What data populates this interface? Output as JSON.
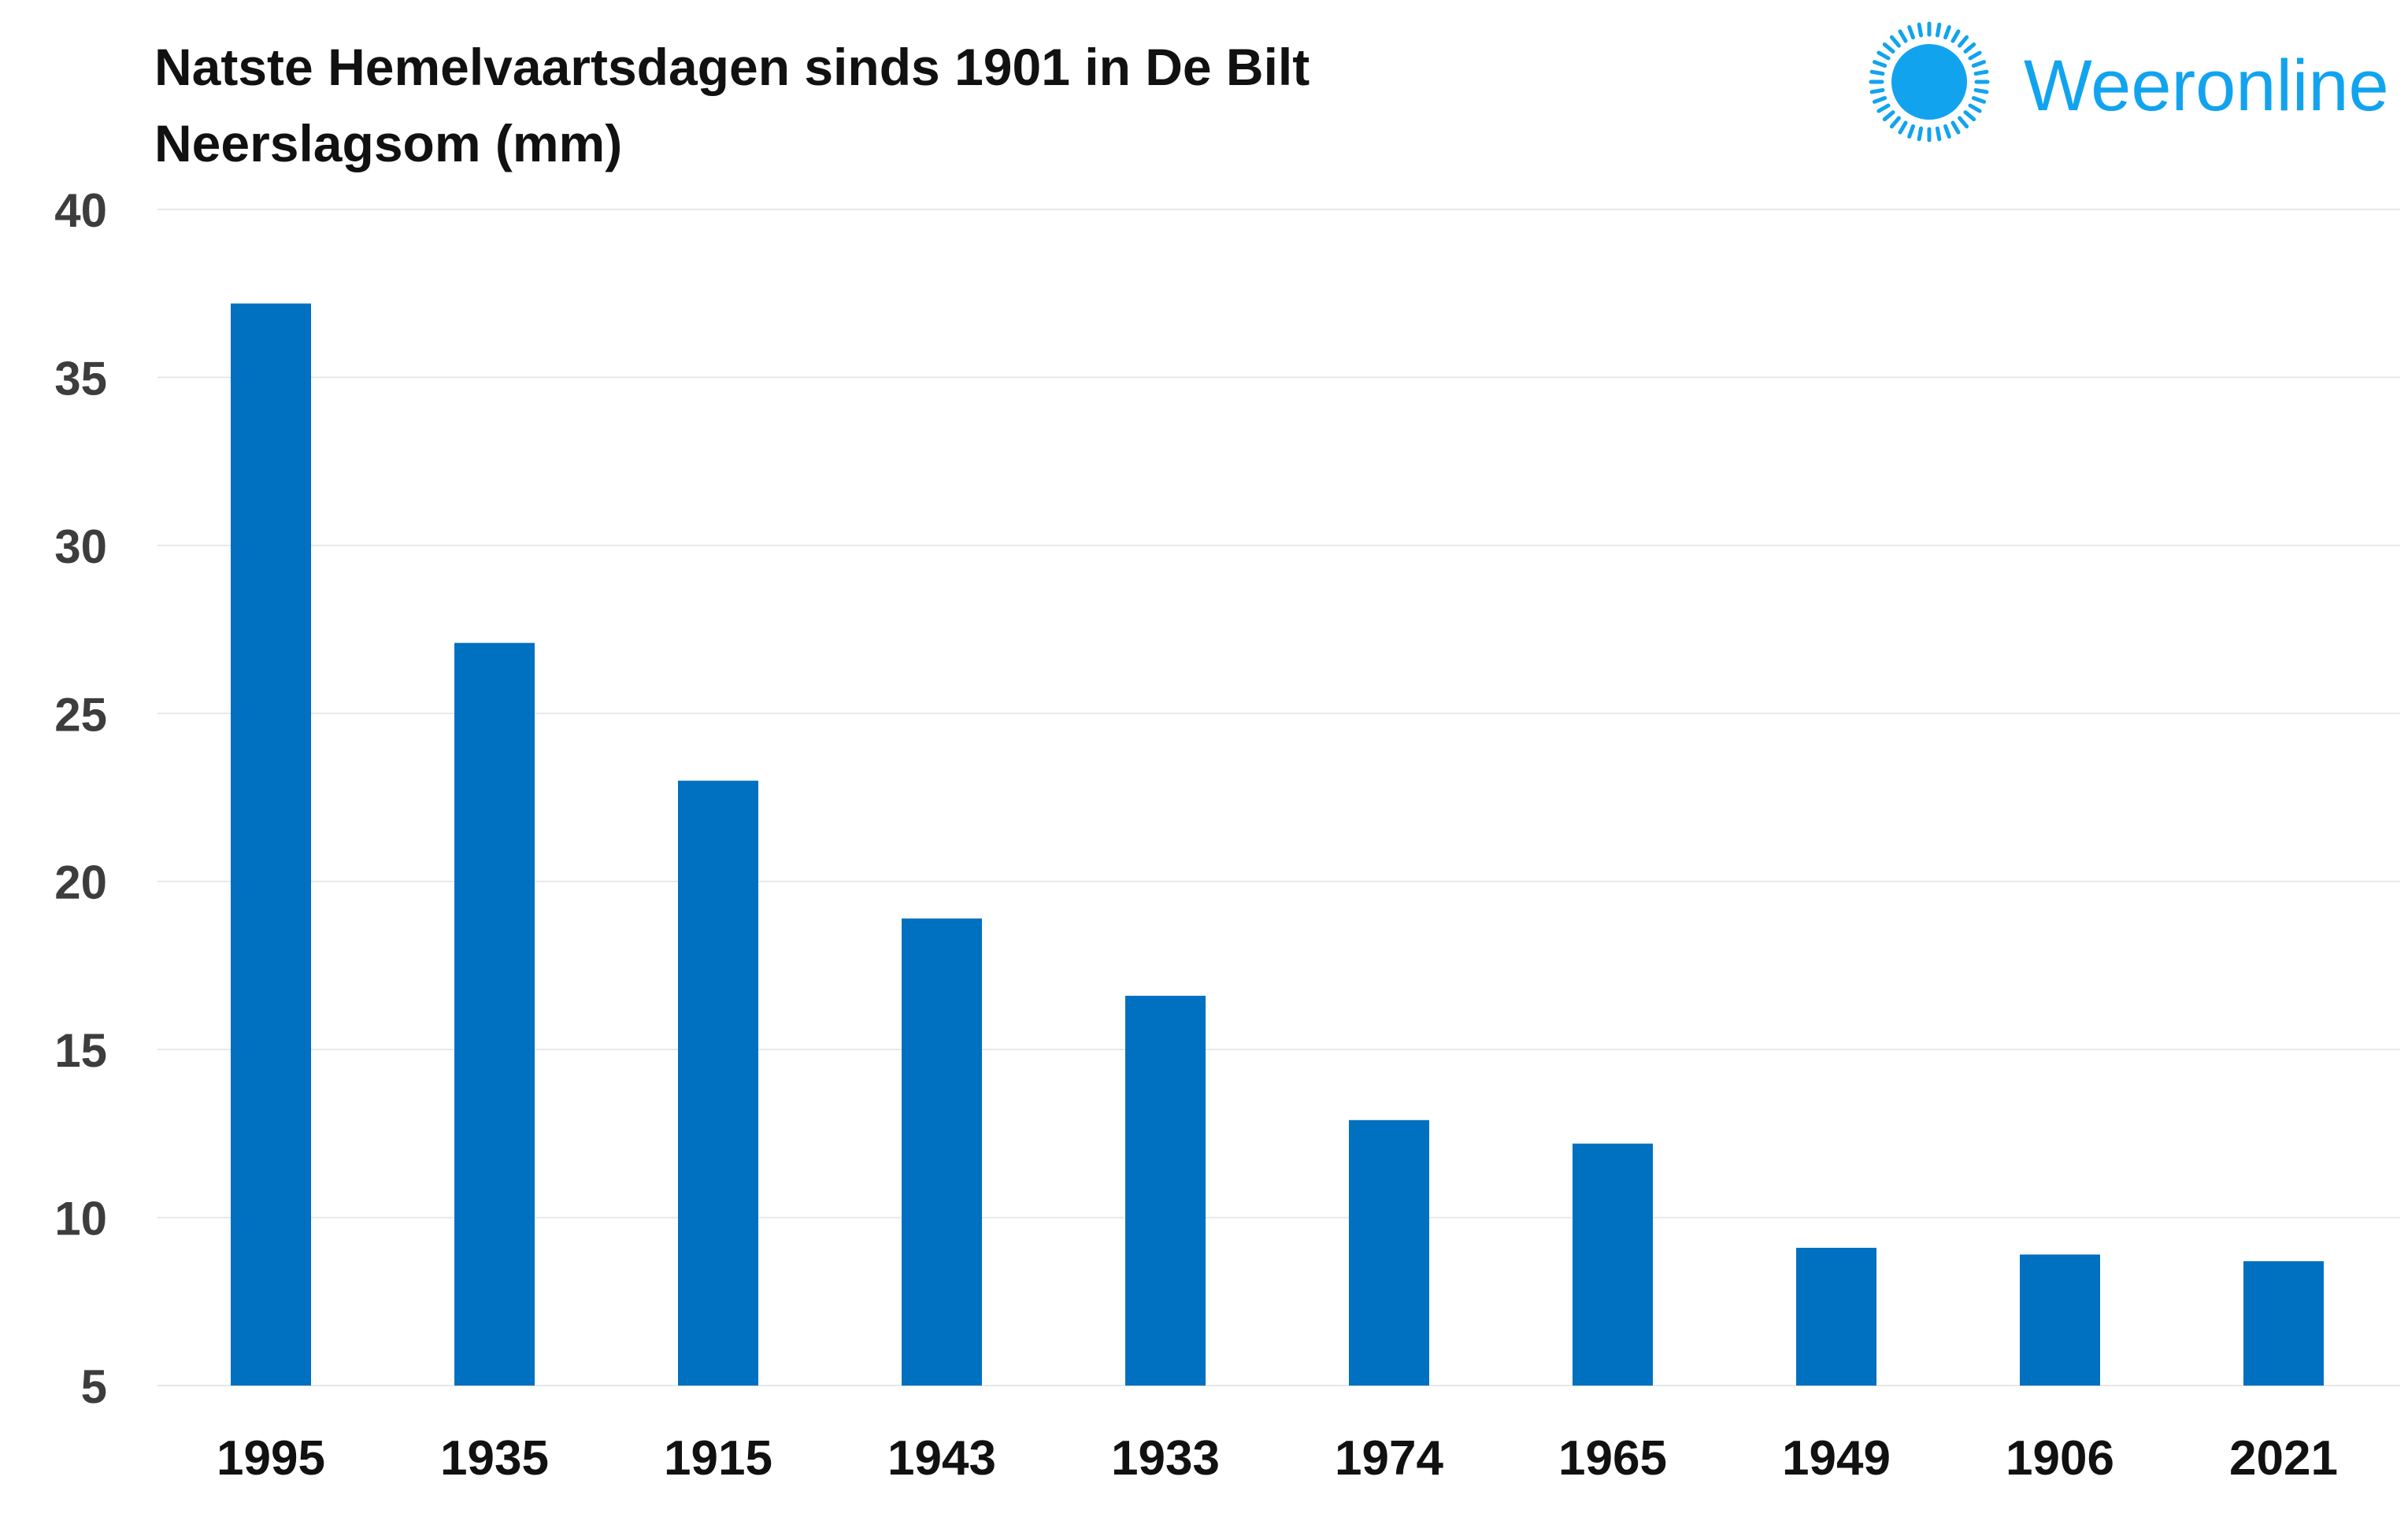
{
  "brand": {
    "name": "Weeronline",
    "color": "#12a3ef",
    "icon": "sun-icon"
  },
  "colors": {
    "bar": "#0070c0",
    "grid": "#e8e8e8",
    "background": "#ffffff"
  },
  "chart_data": {
    "type": "bar",
    "title": "Natste Hemelvaartsdagen sinds 1901 in De Bilt",
    "subtitle": "Neerslagsom (mm)",
    "xlabel": "",
    "ylabel": "",
    "categories": [
      "1995",
      "1935",
      "1915",
      "1943",
      "1933",
      "1974",
      "1965",
      "1949",
      "1906",
      "2021"
    ],
    "values": [
      37.2,
      27.1,
      23.0,
      18.9,
      16.6,
      12.9,
      12.2,
      9.1,
      8.9,
      8.7
    ],
    "ylim": [
      5,
      40
    ],
    "yticks": [
      "5",
      "10",
      "15",
      "20",
      "25",
      "30",
      "35",
      "40"
    ],
    "grid": true,
    "legend": "none"
  }
}
